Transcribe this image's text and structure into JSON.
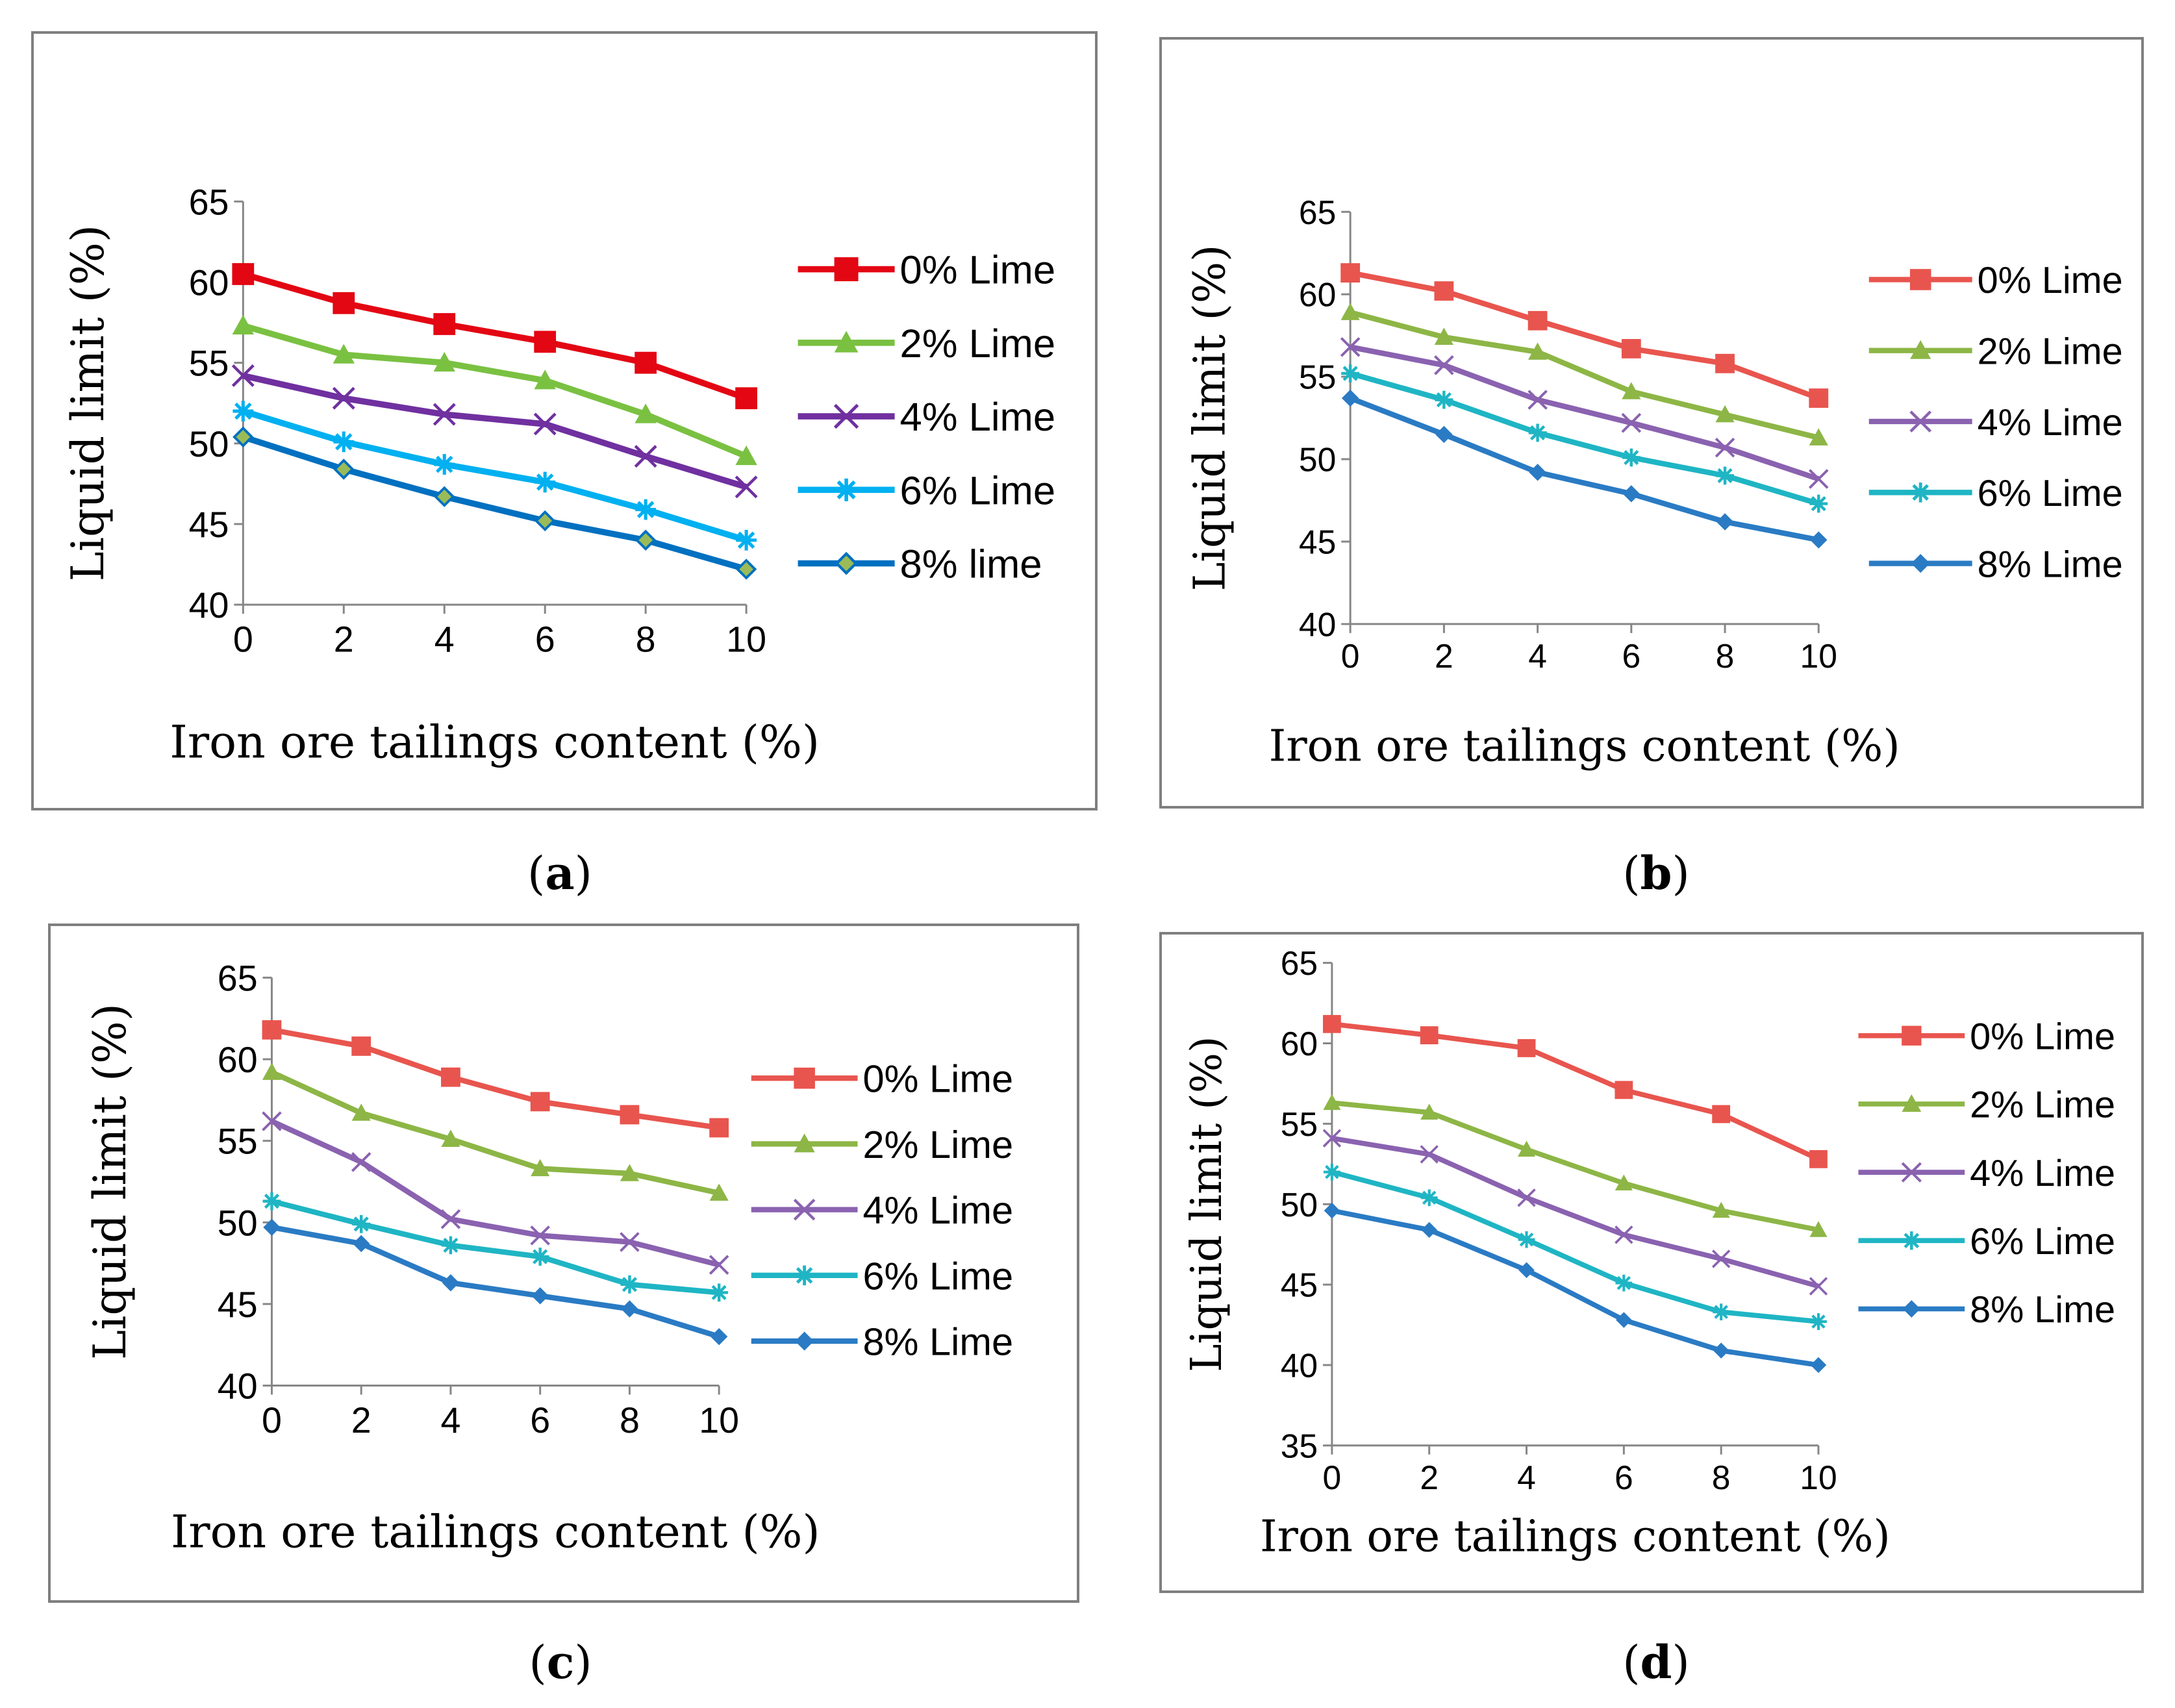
{
  "chart_data": [
    {
      "type": "line",
      "panel_label": "a",
      "xlabel": "Iron ore tailings content (%)",
      "ylabel": "Liquid limit (%)",
      "ylim": [
        40,
        65
      ],
      "yticks": [
        40,
        45,
        50,
        55,
        60,
        65
      ],
      "x": [
        0,
        2,
        4,
        6,
        8,
        10
      ],
      "xtick_labels": [
        "0",
        "2",
        "4",
        "6",
        "8",
        "10"
      ],
      "legend_position": "right",
      "series": [
        {
          "name": "0% Lime",
          "values": [
            60.5,
            58.7,
            57.4,
            56.3,
            55.0,
            52.8
          ],
          "color": "#e30613",
          "marker": "square"
        },
        {
          "name": "2% Lime",
          "values": [
            57.3,
            55.5,
            55.0,
            53.9,
            51.8,
            49.2
          ],
          "color": "#7ac142",
          "marker": "triangle"
        },
        {
          "name": "4% Lime",
          "values": [
            54.2,
            52.8,
            51.8,
            51.2,
            49.2,
            47.3
          ],
          "color": "#7030a0",
          "marker": "x"
        },
        {
          "name": "6% Lime",
          "values": [
            52.0,
            50.1,
            48.7,
            47.6,
            45.9,
            44.0
          ],
          "color": "#00b0f0",
          "marker": "star"
        },
        {
          "name": "8% lime",
          "values": [
            50.4,
            48.4,
            46.7,
            45.2,
            44.0,
            42.2
          ],
          "color": "#0070c0",
          "marker": "diamond-olive"
        }
      ]
    },
    {
      "type": "line",
      "panel_label": "b",
      "xlabel": "Iron ore tailings content (%)",
      "ylabel": "Liquid limit (%)",
      "ylim": [
        40,
        65
      ],
      "yticks": [
        40,
        45,
        50,
        55,
        60,
        65
      ],
      "x": [
        0,
        2,
        4,
        6,
        8,
        10
      ],
      "xtick_labels": [
        "0",
        "2",
        "4",
        "6",
        "8",
        "10"
      ],
      "legend_position": "right",
      "series": [
        {
          "name": "0% Lime",
          "values": [
            61.3,
            60.2,
            58.4,
            56.7,
            55.8,
            53.7
          ],
          "color": "#e8554e",
          "marker": "square"
        },
        {
          "name": "2% Lime",
          "values": [
            58.9,
            57.4,
            56.5,
            54.1,
            52.7,
            51.3
          ],
          "color": "#8db646",
          "marker": "triangle"
        },
        {
          "name": "4% Lime",
          "values": [
            56.8,
            55.7,
            53.6,
            52.2,
            50.7,
            48.8
          ],
          "color": "#8a62b0",
          "marker": "x"
        },
        {
          "name": "6% Lime",
          "values": [
            55.2,
            53.6,
            51.6,
            50.1,
            49.0,
            47.3
          ],
          "color": "#1fb5c4",
          "marker": "star"
        },
        {
          "name": "8% Lime",
          "values": [
            53.7,
            51.5,
            49.2,
            47.9,
            46.2,
            45.1
          ],
          "color": "#2a7bc4",
          "marker": "diamond"
        }
      ]
    },
    {
      "type": "line",
      "panel_label": "c",
      "xlabel": "Iron ore tailings content (%)",
      "ylabel": "Liquid limit (%)",
      "ylim": [
        40,
        65
      ],
      "yticks": [
        40,
        45,
        50,
        55,
        60,
        65
      ],
      "x": [
        0,
        2,
        4,
        6,
        8,
        10
      ],
      "xtick_labels": [
        "0",
        "2",
        "4",
        "6",
        "8",
        "10"
      ],
      "legend_position": "right",
      "series": [
        {
          "name": "0% Lime",
          "values": [
            61.8,
            60.8,
            58.9,
            57.4,
            56.6,
            55.8
          ],
          "color": "#e8554e",
          "marker": "square"
        },
        {
          "name": "2% Lime",
          "values": [
            59.2,
            56.7,
            55.1,
            53.3,
            53.0,
            51.8
          ],
          "color": "#8db646",
          "marker": "triangle"
        },
        {
          "name": "4% Lime",
          "values": [
            56.2,
            53.7,
            50.2,
            49.2,
            48.8,
            47.4
          ],
          "color": "#8a62b0",
          "marker": "x"
        },
        {
          "name": "6% Lime",
          "values": [
            51.3,
            49.9,
            48.6,
            47.9,
            46.2,
            45.7
          ],
          "color": "#1fb5c4",
          "marker": "star"
        },
        {
          "name": "8% Lime",
          "values": [
            49.7,
            48.7,
            46.3,
            45.5,
            44.7,
            43.0
          ],
          "color": "#2a7bc4",
          "marker": "diamond"
        }
      ]
    },
    {
      "type": "line",
      "panel_label": "d",
      "xlabel": "Iron ore tailings content (%)",
      "ylabel": "Liquid limit (%)",
      "ylim": [
        35,
        65
      ],
      "yticks": [
        35,
        40,
        45,
        50,
        55,
        60,
        65
      ],
      "x": [
        0,
        2,
        4,
        6,
        8,
        10
      ],
      "xtick_labels": [
        "0",
        "2",
        "4",
        "6",
        "8",
        "10"
      ],
      "legend_position": "right",
      "series": [
        {
          "name": "0% Lime",
          "values": [
            61.2,
            60.5,
            59.7,
            57.1,
            55.6,
            52.8
          ],
          "color": "#e8554e",
          "marker": "square"
        },
        {
          "name": "2% Lime",
          "values": [
            56.3,
            55.7,
            53.4,
            51.3,
            49.6,
            48.4
          ],
          "color": "#8db646",
          "marker": "triangle"
        },
        {
          "name": "4% Lime",
          "values": [
            54.1,
            53.1,
            50.4,
            48.1,
            46.6,
            44.9
          ],
          "color": "#8a62b0",
          "marker": "x"
        },
        {
          "name": "6% Lime",
          "values": [
            52.0,
            50.4,
            47.8,
            45.1,
            43.3,
            42.7
          ],
          "color": "#1fb5c4",
          "marker": "star"
        },
        {
          "name": "8% Lime",
          "values": [
            49.6,
            48.4,
            45.9,
            42.8,
            40.9,
            40.0
          ],
          "color": "#2a7bc4",
          "marker": "diamond"
        }
      ]
    }
  ]
}
